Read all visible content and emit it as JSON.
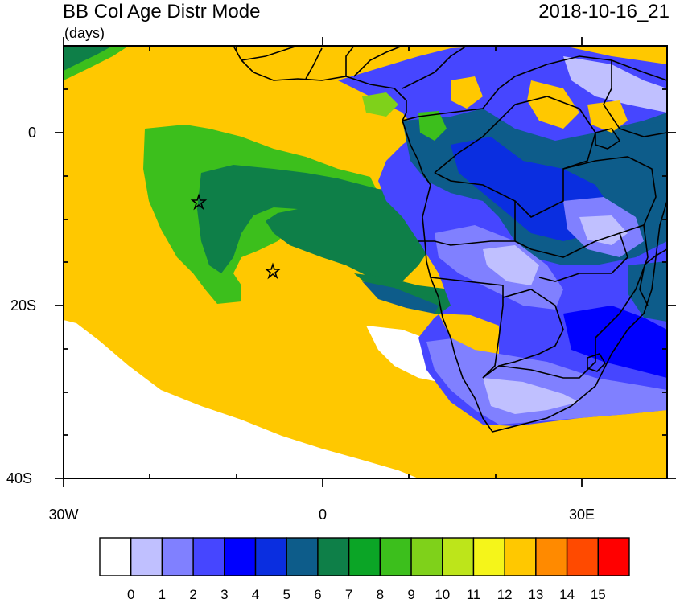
{
  "title": "BB Col Age Distr Mode",
  "units": "(days)",
  "datetime": "2018-10-16_21",
  "axes": {
    "y_ticks": [
      "0",
      "20S",
      "40S"
    ],
    "x_ticks": [
      "30W",
      "0",
      "30E"
    ]
  },
  "colorbar": {
    "labels": [
      "0",
      "1",
      "2",
      "3",
      "4",
      "5",
      "6",
      "7",
      "8",
      "9",
      "10",
      "11",
      "12",
      "13",
      "14",
      "15"
    ],
    "colors": [
      "#ffffff",
      "#c0c0ff",
      "#8080ff",
      "#4646ff",
      "#0000ff",
      "#0a2ee0",
      "#0d5c8a",
      "#0e7f48",
      "#0ba526",
      "#3cbf1c",
      "#7fd11a",
      "#bde51a",
      "#f5f51a",
      "#ffc800",
      "#ff8a00",
      "#ff4a00",
      "#ff0000"
    ]
  },
  "chart_data": {
    "type": "map",
    "field": "biomass burning column age distribution mode",
    "region": {
      "lon_range": [
        -30,
        40
      ],
      "lat_range": [
        -40,
        10
      ]
    },
    "markers": [
      {
        "symbol": "star",
        "lon": -14.4,
        "lat": -7.9
      },
      {
        "symbol": "star",
        "lon": -5.7,
        "lat": -15.9
      }
    ],
    "dominant_values": {
      "southeast_atlantic": 12,
      "offshore_plume_core": 6,
      "plume_edge": 8,
      "southern_africa_interior": [
        2,
        5
      ],
      "southwest_corner": 0
    }
  }
}
